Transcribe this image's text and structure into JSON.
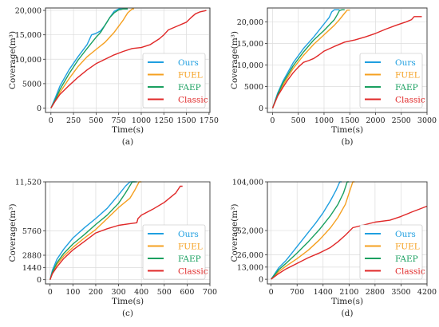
{
  "figure": {
    "background": "#ffffff"
  },
  "colors": {
    "Ours": "#1f9fe0",
    "FUEL": "#f5a020",
    "FAEP": "#1aa060",
    "Classic": "#e02828"
  },
  "chart_data": [
    {
      "type": "line",
      "caption": "(a)",
      "xlabel": "Time(s)",
      "ylabel": "Coverage(m³)",
      "xlim": [
        -60,
        1760
      ],
      "ylim": [
        -900,
        20500
      ],
      "xticks": [
        0,
        250,
        500,
        750,
        1000,
        1250,
        1500,
        1750
      ],
      "yticks": [
        0,
        5000,
        10000,
        15000,
        20000
      ],
      "ytick_labels": [
        "0",
        "5000",
        "10,000",
        "15,000",
        "20,000"
      ],
      "grid": true,
      "legend": "bottom-right",
      "series": [
        {
          "name": "Ours",
          "x": [
            0,
            50,
            100,
            200,
            300,
            400,
            450,
            500,
            550,
            600,
            650,
            700,
            750,
            800,
            850
          ],
          "y": [
            0,
            2200,
            4500,
            7800,
            10500,
            13000,
            15000,
            15300,
            15800,
            17000,
            18500,
            19800,
            20300,
            20300,
            20300
          ]
        },
        {
          "name": "FUEL",
          "x": [
            0,
            50,
            100,
            200,
            300,
            400,
            500,
            600,
            700,
            800,
            850,
            900,
            920
          ],
          "y": [
            0,
            1600,
            3200,
            6000,
            8500,
            10500,
            12000,
            13500,
            15500,
            18000,
            19500,
            20300,
            20300
          ]
        },
        {
          "name": "FAEP",
          "x": [
            0,
            50,
            100,
            200,
            300,
            400,
            500,
            550,
            600,
            650,
            700,
            750,
            800,
            850
          ],
          "y": [
            0,
            1800,
            3800,
            7000,
            9800,
            12200,
            14500,
            15500,
            17000,
            18500,
            19500,
            20100,
            20300,
            20300
          ]
        },
        {
          "name": "Classic",
          "x": [
            0,
            50,
            100,
            200,
            300,
            400,
            500,
            600,
            700,
            800,
            900,
            1000,
            1100,
            1200,
            1250,
            1300,
            1400,
            1500,
            1550,
            1600,
            1650,
            1700,
            1720
          ],
          "y": [
            0,
            1500,
            2800,
            4600,
            6300,
            7800,
            9100,
            10000,
            10900,
            11600,
            12200,
            12400,
            13000,
            14200,
            15000,
            16000,
            16800,
            17600,
            18500,
            19300,
            19700,
            19900,
            20000
          ]
        }
      ]
    },
    {
      "type": "line",
      "caption": "(b)",
      "xlabel": "Time(s)",
      "ylabel": "Coverage(m³)",
      "xlim": [
        -100,
        3000
      ],
      "ylim": [
        -1000,
        23200
      ],
      "xticks": [
        0,
        500,
        1000,
        1500,
        2000,
        2500,
        3000
      ],
      "yticks": [
        0,
        5000,
        10000,
        15000,
        20000
      ],
      "ytick_labels": [
        "0",
        "5000",
        "10,000",
        "15,000",
        "20,000"
      ],
      "grid": true,
      "legend": "bottom-right",
      "series": [
        {
          "name": "Ours",
          "x": [
            0,
            100,
            200,
            400,
            600,
            800,
            1000,
            1100,
            1150,
            1200,
            1250,
            1300
          ],
          "y": [
            0,
            3500,
            6200,
            10500,
            13800,
            16500,
            19500,
            21000,
            22300,
            22800,
            22800,
            22800
          ]
        },
        {
          "name": "FUEL",
          "x": [
            0,
            100,
            200,
            400,
            600,
            800,
            1000,
            1200,
            1300,
            1400,
            1450,
            1500
          ],
          "y": [
            0,
            3000,
            5300,
            9200,
            12200,
            14800,
            17000,
            19200,
            20500,
            22000,
            22700,
            22700
          ]
        },
        {
          "name": "FAEP",
          "x": [
            0,
            100,
            200,
            400,
            600,
            800,
            1000,
            1200,
            1250,
            1300,
            1350,
            1400
          ],
          "y": [
            0,
            3200,
            5800,
            9800,
            13000,
            15800,
            18000,
            20500,
            21500,
            22600,
            22800,
            22800
          ]
        },
        {
          "name": "Classic",
          "x": [
            0,
            100,
            200,
            300,
            400,
            500,
            600,
            700,
            800,
            900,
            1000,
            1200,
            1400,
            1600,
            1800,
            2000,
            2200,
            2400,
            2600,
            2700,
            2750,
            2800,
            2900
          ],
          "y": [
            0,
            2800,
            4800,
            6600,
            8200,
            9500,
            10600,
            11000,
            11500,
            12300,
            13200,
            14300,
            15300,
            15800,
            16500,
            17300,
            18300,
            19200,
            20000,
            20500,
            21200,
            21200,
            21200
          ]
        }
      ]
    },
    {
      "type": "line",
      "caption": "(c)",
      "xlabel": "Time(s)",
      "ylabel": "Coverage(m³)",
      "xlim": [
        -20,
        700
      ],
      "ylim": [
        -500,
        11520
      ],
      "xticks": [
        0,
        100,
        200,
        300,
        400,
        500,
        600,
        700
      ],
      "yticks": [
        0,
        1440,
        2880,
        5760,
        11520
      ],
      "ytick_labels": [
        "0",
        "1440",
        "2880",
        "5760",
        "11,520"
      ],
      "grid": true,
      "legend": "bottom-right",
      "series": [
        {
          "name": "Ours",
          "x": [
            0,
            10,
            30,
            60,
            100,
            150,
            200,
            250,
            300,
            330,
            350,
            370
          ],
          "y": [
            0,
            1100,
            2400,
            3600,
            4900,
            6100,
            7200,
            8400,
            10000,
            11000,
            11520,
            11520
          ]
        },
        {
          "name": "FUEL",
          "x": [
            0,
            10,
            30,
            60,
            100,
            150,
            200,
            250,
            300,
            350,
            370,
            390,
            400
          ],
          "y": [
            0,
            800,
            1800,
            2800,
            3800,
            4900,
            5900,
            7200,
            8500,
            9600,
            10500,
            11520,
            11520
          ]
        },
        {
          "name": "FAEP",
          "x": [
            0,
            10,
            30,
            60,
            100,
            150,
            200,
            250,
            300,
            330,
            360,
            380
          ],
          "y": [
            0,
            900,
            2000,
            3100,
            4200,
            5300,
            6500,
            7600,
            9000,
            10200,
            11520,
            11520
          ]
        },
        {
          "name": "Classic",
          "x": [
            0,
            10,
            30,
            60,
            100,
            150,
            200,
            250,
            300,
            350,
            380,
            385,
            400,
            450,
            500,
            550,
            570,
            580
          ],
          "y": [
            0,
            700,
            1500,
            2500,
            3500,
            4500,
            5500,
            6000,
            6400,
            6600,
            6700,
            7200,
            7600,
            8300,
            9100,
            10200,
            11000,
            11000
          ]
        }
      ]
    },
    {
      "type": "line",
      "caption": "(d)",
      "xlabel": "Time(s)",
      "ylabel": "Coverage(m³)",
      "xlim": [
        -100,
        4200
      ],
      "ylim": [
        -5000,
        104000
      ],
      "xticks": [
        0,
        700,
        1400,
        2100,
        2800,
        3500,
        4200
      ],
      "yticks": [
        0,
        13000,
        26000,
        52000,
        104000
      ],
      "ytick_labels": [
        "0",
        "13,000",
        "26,000",
        "52,000",
        "104,000"
      ],
      "grid": true,
      "legend": "bottom-right",
      "series": [
        {
          "name": "Ours",
          "x": [
            0,
            200,
            400,
            600,
            800,
            1000,
            1200,
            1400,
            1600,
            1750,
            1850,
            1900
          ],
          "y": [
            0,
            12000,
            20000,
            30000,
            40000,
            50000,
            60000,
            71000,
            84000,
            95000,
            104000,
            104000
          ]
        },
        {
          "name": "FUEL",
          "x": [
            0,
            200,
            400,
            700,
            1000,
            1300,
            1600,
            1800,
            2000,
            2100,
            2200,
            2250
          ],
          "y": [
            0,
            8000,
            14000,
            22000,
            31000,
            42000,
            55000,
            66000,
            80000,
            92000,
            104000,
            104000
          ]
        },
        {
          "name": "FAEP",
          "x": [
            0,
            200,
            400,
            700,
            1000,
            1300,
            1600,
            1800,
            1950,
            2050,
            2100
          ],
          "y": [
            0,
            10000,
            17000,
            28000,
            40000,
            53000,
            68000,
            80000,
            92000,
            104000,
            104000
          ]
        },
        {
          "name": "Classic",
          "x": [
            0,
            200,
            400,
            700,
            1000,
            1300,
            1600,
            1800,
            2000,
            2200,
            2500,
            2800,
            3200,
            3500,
            3800,
            4000,
            4200
          ],
          "y": [
            0,
            6000,
            11000,
            17000,
            23000,
            28000,
            34000,
            40000,
            47000,
            55000,
            58000,
            61000,
            63000,
            67000,
            72000,
            75000,
            78000
          ]
        }
      ]
    }
  ]
}
